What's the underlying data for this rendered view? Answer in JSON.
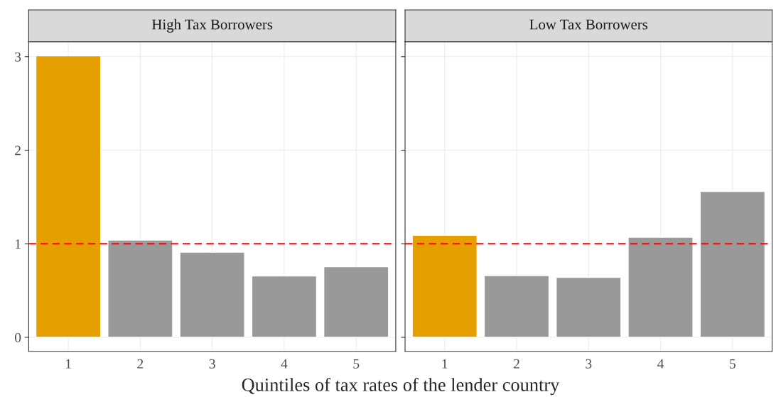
{
  "chart_data": [
    {
      "type": "bar",
      "title": "High Tax Borrowers",
      "xlabel": "Quintiles of tax rates of the lender country",
      "categories": [
        "1",
        "2",
        "3",
        "4",
        "5"
      ],
      "values": [
        3.01,
        1.04,
        0.91,
        0.655,
        0.754
      ],
      "colors": [
        "#e69f00",
        "#999999",
        "#999999",
        "#999999",
        "#999999"
      ],
      "ylim": [
        -0.15,
        3.16
      ],
      "yticks": [
        0,
        1,
        2,
        3
      ],
      "grid": true,
      "ref_lines": [
        {
          "axis": "y",
          "value": 1,
          "color": "#ff0000",
          "line_style": "dashed"
        }
      ]
    },
    {
      "type": "bar",
      "title": "Low Tax Borrowers",
      "categories": [
        "1",
        "2",
        "3",
        "4",
        "5"
      ],
      "values": [
        1.09,
        0.66,
        0.64,
        1.07,
        1.56
      ],
      "colors": [
        "#e69f00",
        "#999999",
        "#999999",
        "#999999",
        "#999999"
      ],
      "ylim": [
        -0.15,
        3.16
      ],
      "yticks": [
        0,
        1,
        2,
        3
      ],
      "grid": true,
      "tick_labels": "x",
      "ref_lines": [
        {
          "axis": "y",
          "value": 1,
          "color": "#ff0000",
          "line_style": "dashed"
        }
      ]
    }
  ]
}
